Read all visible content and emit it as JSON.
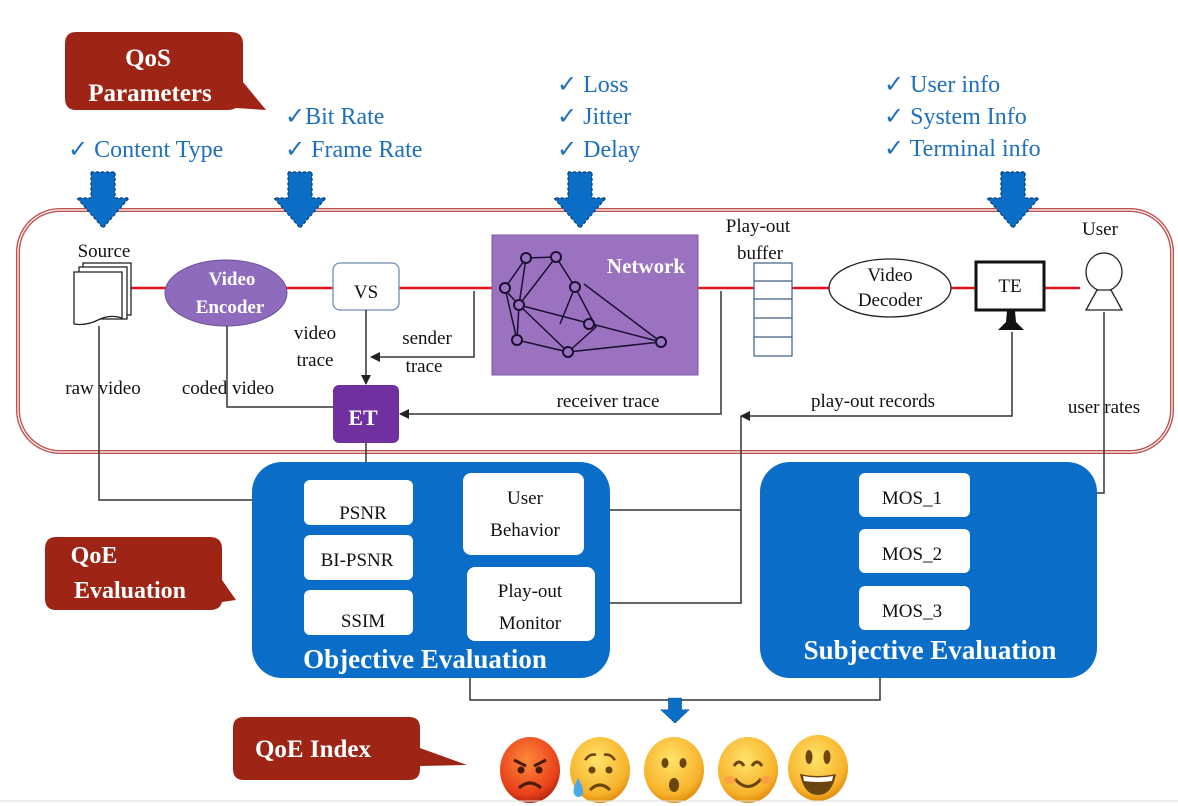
{
  "colors": {
    "callout": "#9e2516",
    "param_text": "#1f6fbf",
    "eval_box": "#0a6ec8",
    "network": "#9b72c0",
    "encoder": "#8f6bbd",
    "et": "#7030a0",
    "frame": "#c0504d",
    "signal_line": "#e8141c"
  },
  "callouts": {
    "qos": [
      "QoS",
      "Parameters"
    ],
    "qoe_eval": [
      "QoE",
      "Evaluation"
    ],
    "qoe_index": "QoE Index"
  },
  "parameters": {
    "content": [
      "✓ Content Type"
    ],
    "encoding": [
      "✓Bit Rate",
      "✓ Frame Rate"
    ],
    "network": [
      "✓ Loss",
      "✓ Jitter",
      "✓ Delay"
    ],
    "terminal": [
      "✓ User info",
      "✓ System  Info",
      "✓ Terminal info"
    ]
  },
  "pipeline": {
    "source": "Source",
    "encoder": [
      "Video",
      "Encoder"
    ],
    "vs": "VS",
    "network": "Network",
    "buffer": [
      "Play-out",
      "buffer"
    ],
    "decoder": [
      "Video",
      "Decoder"
    ],
    "te": "TE",
    "user": "User",
    "et": "ET"
  },
  "connectors": {
    "raw_video": "raw video",
    "coded_video": "coded video",
    "video_trace": [
      "video",
      "trace"
    ],
    "sender_trace": [
      "sender",
      "trace"
    ],
    "receiver_trace": "receiver trace",
    "playout_records": "play-out records",
    "user_rates": "user rates"
  },
  "objective": {
    "title": "Objective Evaluation",
    "metrics": [
      "PSNR",
      "BI-PSNR",
      "SSIM"
    ],
    "user_behavior": [
      "User",
      "Behavior"
    ],
    "playout_monitor": [
      "Play-out",
      "Monitor"
    ]
  },
  "subjective": {
    "title": "Subjective Evaluation",
    "metrics": [
      "MOS_1",
      "MOS_2",
      "MOS_3"
    ]
  },
  "qoe_index_scale": [
    "angry-face-icon",
    "sad-tear-face-icon",
    "surprised-face-icon",
    "smiling-face-icon",
    "grinning-face-icon"
  ]
}
